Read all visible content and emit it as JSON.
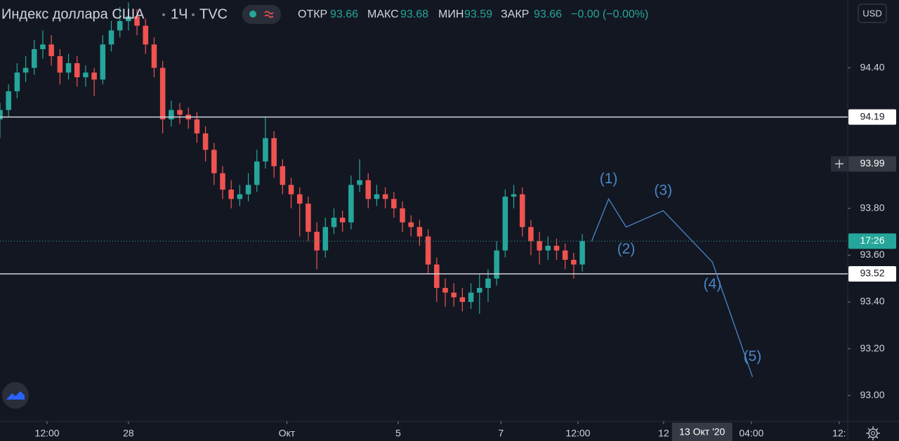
{
  "chart_data": {
    "type": "candlestick",
    "header": {
      "symbol": "Индекс доллара США",
      "interval": "1Ч",
      "source": "TVC",
      "open_label": "ОТКР",
      "open": 93.66,
      "high_label": "МАКС",
      "high": 93.68,
      "low_label": "МИН",
      "low": 93.59,
      "close_label": "ЗАКР",
      "close": 93.66,
      "change": "−0.00 (−0.00%)"
    },
    "currency": "USD",
    "up_color": "#26a69a",
    "down_color": "#ef5350",
    "xlim": [
      0,
      396
    ],
    "ylim": [
      92.89,
      94.69
    ],
    "x": [
      0,
      4,
      8,
      12,
      16,
      20,
      24,
      28,
      32,
      36,
      40,
      44,
      48,
      52,
      56,
      60,
      64,
      68,
      72,
      76,
      80,
      84,
      88,
      92,
      96,
      100,
      104,
      108,
      112,
      116,
      120,
      124,
      128,
      132,
      136,
      140,
      144,
      148,
      152,
      156,
      160,
      164,
      168,
      172,
      176,
      180,
      184,
      188,
      192,
      196,
      200,
      204,
      208,
      212,
      216,
      220,
      224,
      228,
      232,
      236,
      240,
      244,
      248,
      252,
      256,
      260,
      264,
      268,
      272
    ],
    "ohlc": [
      [
        94.18,
        94.25,
        94.1,
        94.22
      ],
      [
        94.22,
        94.33,
        94.19,
        94.3
      ],
      [
        94.3,
        94.42,
        94.27,
        94.38
      ],
      [
        94.38,
        94.45,
        94.34,
        94.4
      ],
      [
        94.4,
        94.52,
        94.37,
        94.48
      ],
      [
        94.48,
        94.56,
        94.44,
        94.5
      ],
      [
        94.5,
        94.54,
        94.41,
        94.45
      ],
      [
        94.45,
        94.48,
        94.33,
        94.38
      ],
      [
        94.38,
        94.46,
        94.35,
        94.42
      ],
      [
        94.42,
        94.45,
        94.32,
        94.36
      ],
      [
        94.36,
        94.41,
        94.32,
        94.38
      ],
      [
        94.38,
        94.4,
        94.28,
        94.35
      ],
      [
        94.35,
        94.54,
        94.33,
        94.5
      ],
      [
        94.5,
        94.6,
        94.47,
        94.56
      ],
      [
        94.56,
        94.66,
        94.53,
        94.6
      ],
      [
        94.6,
        94.68,
        94.56,
        94.62
      ],
      [
        94.62,
        94.65,
        94.54,
        94.58
      ],
      [
        94.58,
        94.61,
        94.46,
        94.5
      ],
      [
        94.5,
        94.53,
        94.36,
        94.4
      ],
      [
        94.4,
        94.43,
        94.12,
        94.18
      ],
      [
        94.18,
        94.26,
        94.15,
        94.22
      ],
      [
        94.22,
        94.25,
        94.16,
        94.2
      ],
      [
        94.2,
        94.23,
        94.14,
        94.18
      ],
      [
        94.18,
        94.21,
        94.08,
        94.12
      ],
      [
        94.12,
        94.15,
        94.0,
        94.05
      ],
      [
        94.05,
        94.08,
        93.9,
        93.95
      ],
      [
        93.95,
        93.98,
        93.84,
        93.88
      ],
      [
        93.88,
        93.92,
        93.8,
        93.84
      ],
      [
        93.84,
        93.9,
        93.81,
        93.86
      ],
      [
        93.86,
        93.95,
        93.83,
        93.9
      ],
      [
        93.9,
        94.05,
        93.87,
        94.0
      ],
      [
        94.0,
        94.19,
        93.97,
        94.1
      ],
      [
        94.1,
        94.13,
        93.93,
        93.98
      ],
      [
        93.98,
        94.01,
        93.86,
        93.9
      ],
      [
        93.9,
        93.93,
        93.8,
        93.86
      ],
      [
        93.86,
        93.89,
        93.68,
        93.82
      ],
      [
        93.82,
        93.85,
        93.66,
        93.7
      ],
      [
        93.7,
        93.74,
        93.54,
        93.62
      ],
      [
        93.62,
        93.76,
        93.59,
        93.72
      ],
      [
        93.72,
        93.8,
        93.69,
        93.76
      ],
      [
        93.76,
        93.79,
        93.7,
        93.74
      ],
      [
        93.74,
        93.94,
        93.71,
        93.9
      ],
      [
        93.9,
        94.01,
        93.87,
        93.92
      ],
      [
        93.92,
        93.95,
        93.8,
        93.84
      ],
      [
        93.84,
        93.9,
        93.81,
        93.86
      ],
      [
        93.86,
        93.89,
        93.8,
        93.84
      ],
      [
        93.84,
        93.87,
        93.76,
        93.8
      ],
      [
        93.8,
        93.83,
        93.7,
        93.74
      ],
      [
        93.74,
        93.77,
        93.68,
        93.72
      ],
      [
        93.72,
        93.75,
        93.64,
        93.68
      ],
      [
        93.68,
        93.71,
        93.52,
        93.56
      ],
      [
        93.56,
        93.59,
        93.4,
        93.46
      ],
      [
        93.46,
        93.5,
        93.38,
        93.44
      ],
      [
        93.44,
        93.48,
        93.38,
        93.42
      ],
      [
        93.42,
        93.46,
        93.36,
        93.4
      ],
      [
        93.4,
        93.48,
        93.37,
        93.44
      ],
      [
        93.44,
        93.52,
        93.35,
        93.46
      ],
      [
        93.46,
        93.54,
        93.4,
        93.5
      ],
      [
        93.5,
        93.66,
        93.47,
        93.62
      ],
      [
        93.62,
        93.88,
        93.59,
        93.85
      ],
      [
        93.85,
        93.9,
        93.8,
        93.86
      ],
      [
        93.86,
        93.89,
        93.68,
        93.72
      ],
      [
        93.72,
        93.75,
        93.6,
        93.66
      ],
      [
        93.66,
        93.7,
        93.56,
        93.62
      ],
      [
        93.62,
        93.68,
        93.58,
        93.64
      ],
      [
        93.64,
        93.67,
        93.58,
        93.62
      ],
      [
        93.62,
        93.65,
        93.54,
        93.58
      ],
      [
        93.58,
        93.61,
        93.5,
        93.56
      ],
      [
        93.56,
        93.69,
        93.53,
        93.66
      ]
    ],
    "yticks": [
      {
        "value": 93.0,
        "label": "93.00"
      },
      {
        "value": 93.2,
        "label": "93.20"
      },
      {
        "value": 93.4,
        "label": "93.40"
      },
      {
        "value": 93.6,
        "label": "93.60"
      },
      {
        "value": 93.8,
        "label": "93.80"
      },
      {
        "value": 94.4,
        "label": "94.40"
      }
    ],
    "xticks": [
      {
        "value": 22,
        "label": "12:00"
      },
      {
        "value": 60,
        "label": "28"
      },
      {
        "value": 134,
        "label": "Окт"
      },
      {
        "value": 186,
        "label": "5"
      },
      {
        "value": 234,
        "label": "7"
      },
      {
        "value": 270,
        "label": "12:00"
      },
      {
        "value": 310,
        "label": "12"
      },
      {
        "value": 351,
        "label": "04:00"
      },
      {
        "value": 392,
        "label": "12:"
      }
    ],
    "price_lines": [
      94.19,
      93.52
    ],
    "crosshair_price": 93.99,
    "crosshair_x": {
      "value": 328,
      "label": "13 Окт '20"
    },
    "last_price": 93.66,
    "countdown": "17:26",
    "projection": {
      "color": "#4a86c8",
      "x": [
        276.4,
        284.3,
        292.5,
        309.8,
        332.8,
        351.5
      ],
      "y": [
        93.66,
        93.84,
        93.72,
        93.79,
        93.57,
        93.08
      ],
      "labels": [
        null,
        "(1)",
        "(2)",
        "(3)",
        "(4)",
        "(5)"
      ]
    }
  }
}
